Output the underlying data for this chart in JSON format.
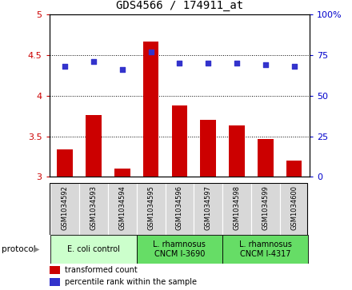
{
  "title": "GDS4566 / 174911_at",
  "samples": [
    "GSM1034592",
    "GSM1034593",
    "GSM1034594",
    "GSM1034595",
    "GSM1034596",
    "GSM1034597",
    "GSM1034598",
    "GSM1034599",
    "GSM1034600"
  ],
  "transformed_counts": [
    3.34,
    3.76,
    3.1,
    4.67,
    3.88,
    3.7,
    3.63,
    3.47,
    3.2
  ],
  "percentile_ranks": [
    68,
    71,
    66,
    77,
    70,
    70,
    70,
    69,
    68
  ],
  "bar_color": "#cc0000",
  "dot_color": "#3333cc",
  "ylim_left": [
    3.0,
    5.0
  ],
  "ylim_right": [
    0,
    100
  ],
  "yticks_left": [
    3.0,
    3.5,
    4.0,
    4.5,
    5.0
  ],
  "ytick_labels_left": [
    "3",
    "3.5",
    "4",
    "4.5",
    "5"
  ],
  "yticks_right": [
    0,
    25,
    50,
    75,
    100
  ],
  "ytick_labels_right": [
    "0",
    "25",
    "50",
    "75",
    "100%"
  ],
  "hlines": [
    3.5,
    4.0,
    4.5
  ],
  "groups": [
    {
      "label": "E. coli control",
      "start": 0,
      "end": 3,
      "color": "#ccffcc"
    },
    {
      "label": "L. rhamnosus\nCNCM I-3690",
      "start": 3,
      "end": 6,
      "color": "#66dd66"
    },
    {
      "label": "L. rhamnosus\nCNCM I-4317",
      "start": 6,
      "end": 9,
      "color": "#66dd66"
    }
  ],
  "protocol_label": "protocol",
  "legend_bar_label": "transformed count",
  "legend_dot_label": "percentile rank within the sample",
  "left_tick_color": "#cc0000",
  "right_tick_color": "#0000cc",
  "cell_bg": "#d8d8d8",
  "cell_edge": "#ffffff"
}
